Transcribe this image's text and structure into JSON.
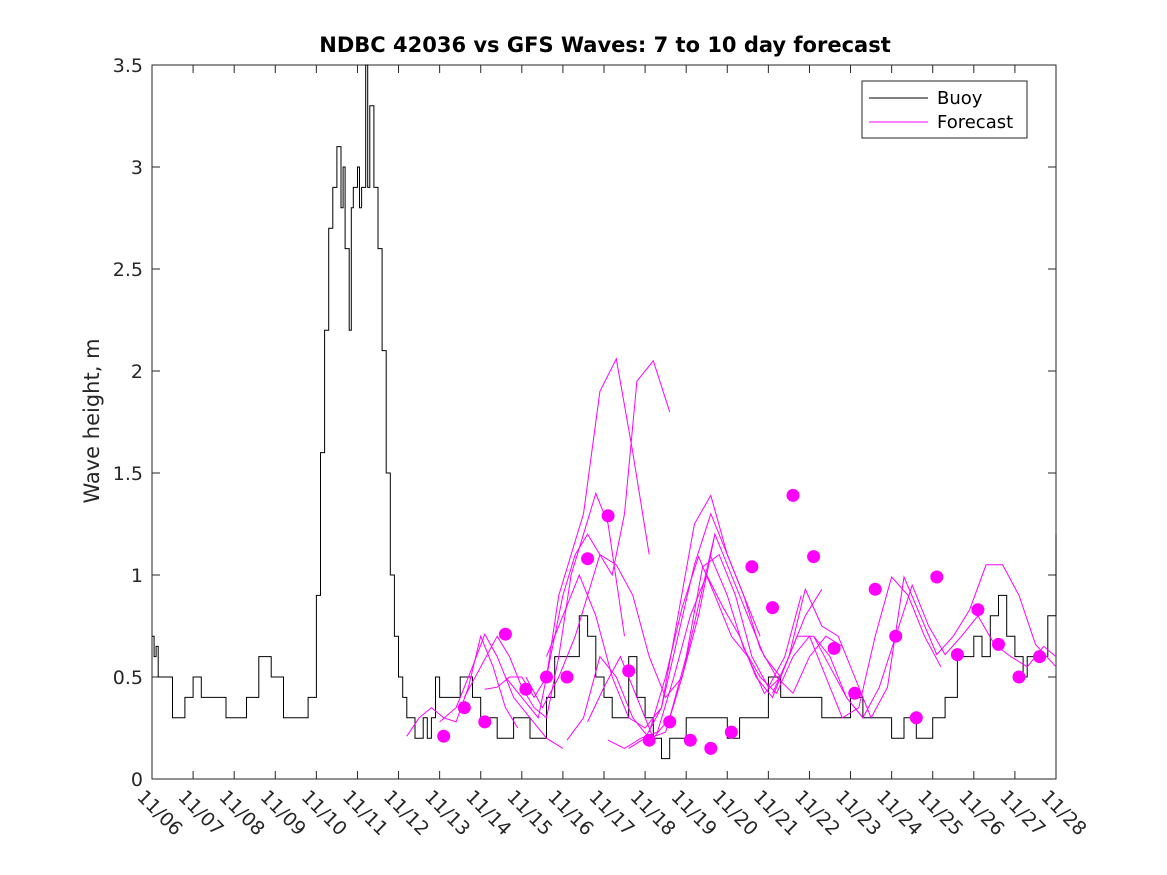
{
  "chart_data": {
    "type": "line",
    "title": "NDBC 42036 vs GFS Waves: 7 to 10 day forecast",
    "xlabel": "",
    "ylabel": "Wave height, m",
    "xlim": [
      0,
      22
    ],
    "ylim": [
      0,
      3.5
    ],
    "yticks": [
      0,
      0.5,
      1,
      1.5,
      2,
      2.5,
      3,
      3.5
    ],
    "ytick_labels": [
      "0",
      "0.5",
      "1",
      "1.5",
      "2",
      "2.5",
      "3",
      "3.5"
    ],
    "xticks": [
      0,
      1,
      2,
      3,
      4,
      5,
      6,
      7,
      8,
      9,
      10,
      11,
      12,
      13,
      14,
      15,
      16,
      17,
      18,
      19,
      20,
      21,
      22
    ],
    "xtick_labels": [
      "11/06",
      "11/07",
      "11/08",
      "11/09",
      "11/10",
      "11/11",
      "11/12",
      "11/13",
      "11/14",
      "11/15",
      "11/16",
      "11/17",
      "11/18",
      "11/19",
      "11/20",
      "11/21",
      "11/22",
      "11/23",
      "11/24",
      "11/25",
      "11/26",
      "11/27",
      "11/28"
    ],
    "legend": {
      "position": "top-right",
      "entries": [
        "Buoy",
        "Forecast"
      ]
    },
    "colors": {
      "buoy": "#000000",
      "forecast": "#ff00ff"
    },
    "buoy": {
      "name": "Buoy",
      "x": [
        0,
        0.05,
        0.1,
        0.15,
        0.3,
        0.5,
        0.7,
        0.8,
        0.9,
        1.0,
        1.2,
        1.4,
        1.6,
        1.8,
        2.0,
        2.3,
        2.6,
        2.9,
        3.2,
        3.5,
        3.8,
        4.0,
        4.1,
        4.2,
        4.3,
        4.4,
        4.5,
        4.6,
        4.65,
        4.7,
        4.8,
        4.85,
        4.9,
        5.0,
        5.05,
        5.1,
        5.2,
        5.25,
        5.3,
        5.4,
        5.5,
        5.6,
        5.7,
        5.8,
        5.9,
        6.0,
        6.1,
        6.2,
        6.3,
        6.4,
        6.5,
        6.6,
        6.7,
        6.8,
        6.9,
        7.0,
        7.2,
        7.5,
        7.8,
        8.0,
        8.2,
        8.4,
        8.6,
        8.8,
        9.0,
        9.2,
        9.4,
        9.6,
        9.8,
        10.0,
        10.2,
        10.4,
        10.6,
        10.8,
        11.0,
        11.2,
        11.4,
        11.6,
        11.8,
        12.0,
        12.2,
        12.4,
        12.6,
        12.8,
        13.0,
        13.2,
        13.4,
        13.6,
        13.8,
        14.0,
        14.3,
        14.6,
        15.0,
        15.3,
        15.6,
        16.0,
        16.3,
        16.6,
        17.0,
        17.3,
        17.6,
        18.0,
        18.3,
        18.6,
        19.0,
        19.3,
        19.6,
        20.0,
        20.2,
        20.4,
        20.6,
        20.8,
        21.0,
        21.2,
        21.3,
        21.5,
        21.8,
        22.0
      ],
      "values": [
        0.7,
        0.6,
        0.65,
        0.5,
        0.5,
        0.3,
        0.3,
        0.4,
        0.4,
        0.5,
        0.4,
        0.4,
        0.4,
        0.3,
        0.3,
        0.4,
        0.6,
        0.5,
        0.3,
        0.3,
        0.4,
        0.9,
        1.6,
        2.2,
        2.7,
        2.9,
        3.1,
        2.8,
        3.0,
        2.6,
        2.2,
        2.8,
        2.9,
        3.0,
        2.8,
        2.9,
        3.5,
        2.9,
        3.3,
        2.9,
        2.6,
        2.1,
        1.5,
        1.0,
        0.7,
        0.5,
        0.4,
        0.3,
        0.3,
        0.2,
        0.2,
        0.3,
        0.2,
        0.3,
        0.5,
        0.4,
        0.4,
        0.5,
        0.4,
        0.3,
        0.3,
        0.2,
        0.2,
        0.3,
        0.3,
        0.2,
        0.2,
        0.4,
        0.6,
        0.6,
        0.6,
        0.8,
        0.7,
        0.5,
        0.4,
        0.3,
        0.3,
        0.6,
        0.4,
        0.3,
        0.2,
        0.1,
        0.2,
        0.2,
        0.3,
        0.3,
        0.3,
        0.3,
        0.3,
        0.2,
        0.3,
        0.3,
        0.5,
        0.4,
        0.4,
        0.4,
        0.3,
        0.3,
        0.4,
        0.3,
        0.3,
        0.2,
        0.3,
        0.2,
        0.3,
        0.4,
        0.6,
        0.7,
        0.6,
        0.8,
        0.9,
        0.7,
        0.6,
        0.5,
        0.6,
        0.6,
        0.8,
        1.2
      ]
    },
    "series": [
      {
        "name": "Forecast",
        "x": [
          6.2,
          6.5,
          6.8,
          7.1,
          7.4,
          7.7,
          8.0,
          8.3,
          8.6,
          8.9
        ],
        "values": [
          0.21,
          0.3,
          0.35,
          0.3,
          0.28,
          0.45,
          0.7,
          0.55,
          0.35,
          0.25
        ]
      },
      {
        "name": "Forecast",
        "x": [
          7.0,
          7.4,
          7.8,
          8.1,
          8.4,
          8.8,
          9.2,
          9.6,
          10.0
        ],
        "values": [
          0.28,
          0.35,
          0.55,
          0.71,
          0.6,
          0.4,
          0.3,
          0.2,
          0.15
        ]
      },
      {
        "name": "Forecast",
        "x": [
          7.6,
          8.0,
          8.4,
          8.7,
          9.0,
          9.3,
          9.6,
          9.9,
          10.2,
          10.5,
          10.8,
          11.1,
          11.5
        ],
        "values": [
          0.4,
          0.55,
          0.7,
          0.6,
          0.45,
          0.35,
          0.3,
          0.6,
          1.0,
          1.2,
          1.4,
          1.25,
          0.7
        ]
      },
      {
        "name": "Forecast",
        "x": [
          8.1,
          8.4,
          8.7,
          9.0,
          9.3,
          9.6,
          9.9,
          10.2,
          10.5,
          10.9,
          11.3,
          11.7,
          12.1
        ],
        "values": [
          0.44,
          0.45,
          0.5,
          0.5,
          0.4,
          0.5,
          0.9,
          1.1,
          1.3,
          1.9,
          2.06,
          1.6,
          1.1
        ]
      },
      {
        "name": "Forecast",
        "x": [
          8.6,
          9.0,
          9.4,
          9.7,
          10.0,
          10.3,
          10.6,
          10.9,
          11.2,
          11.5,
          11.8,
          12.2,
          12.6
        ],
        "values": [
          0.5,
          0.4,
          0.3,
          0.6,
          0.9,
          1.1,
          1.2,
          1.1,
          1.0,
          1.3,
          1.95,
          2.05,
          1.8
        ]
      },
      {
        "name": "Forecast",
        "x": [
          9.1,
          9.5,
          9.9,
          10.3,
          10.6,
          10.9,
          11.3,
          11.7,
          12.1,
          12.5,
          12.9,
          13.3,
          13.7
        ],
        "values": [
          0.5,
          0.35,
          0.5,
          0.7,
          0.9,
          1.1,
          1.05,
          0.9,
          0.6,
          0.4,
          0.5,
          0.8,
          1.2
        ]
      },
      {
        "name": "Forecast",
        "x": [
          9.6,
          10.0,
          10.4,
          10.8,
          11.2,
          11.6,
          12.0,
          12.4,
          12.8,
          13.2,
          13.6,
          14.0,
          14.4,
          14.8
        ],
        "values": [
          0.6,
          0.8,
          1.0,
          0.8,
          0.5,
          0.3,
          0.25,
          0.35,
          0.7,
          1.05,
          1.3,
          1.1,
          0.9,
          0.7
        ]
      },
      {
        "name": "Forecast",
        "x": [
          10.1,
          10.5,
          10.9,
          11.3,
          11.7,
          12.1,
          12.5,
          12.9,
          13.3,
          13.7,
          14.1,
          14.5,
          14.9,
          15.3
        ],
        "values": [
          0.19,
          0.3,
          0.6,
          0.5,
          0.3,
          0.2,
          0.23,
          0.5,
          0.85,
          1.2,
          1.0,
          0.8,
          0.6,
          0.5
        ]
      },
      {
        "name": "Forecast",
        "x": [
          10.6,
          11.0,
          11.4,
          11.8,
          12.2,
          12.6,
          13.0,
          13.4,
          13.8,
          14.2,
          14.6,
          15.0,
          15.4,
          15.8
        ],
        "values": [
          0.28,
          0.45,
          0.6,
          0.4,
          0.2,
          0.3,
          0.6,
          1.04,
          1.1,
          0.9,
          0.6,
          0.45,
          0.6,
          0.9
        ]
      },
      {
        "name": "Forecast",
        "x": [
          11.1,
          11.5,
          11.9,
          12.3,
          12.7,
          13.1,
          13.5,
          13.9,
          14.3,
          14.7,
          15.1,
          15.5,
          15.9,
          16.3
        ],
        "values": [
          0.19,
          0.15,
          0.2,
          0.23,
          0.5,
          0.8,
          1.0,
          0.84,
          0.7,
          0.5,
          0.4,
          0.6,
          0.8,
          0.93
        ]
      },
      {
        "name": "Forecast",
        "x": [
          11.6,
          12.0,
          12.4,
          12.8,
          13.2,
          13.6,
          14.0,
          14.4,
          14.8,
          15.2,
          15.6,
          16.0,
          16.4,
          16.8
        ],
        "values": [
          0.15,
          0.2,
          0.35,
          0.8,
          1.25,
          1.39,
          1.1,
          0.9,
          0.64,
          0.5,
          0.42,
          0.6,
          0.7,
          0.65
        ]
      },
      {
        "name": "Forecast",
        "x": [
          12.1,
          12.5,
          12.9,
          13.3,
          13.7,
          14.1,
          14.5,
          14.9,
          15.3,
          15.7,
          16.1,
          16.5,
          16.9,
          17.3
        ],
        "values": [
          0.23,
          0.5,
          0.84,
          1.09,
          0.9,
          0.7,
          0.6,
          0.42,
          0.5,
          0.7,
          0.7,
          0.55,
          0.4,
          0.3
        ]
      },
      {
        "name": "Forecast",
        "x": [
          13.6,
          14.0,
          14.4,
          14.8,
          15.2,
          15.6,
          16.0,
          16.4,
          16.8,
          17.2,
          17.6,
          18.0,
          18.4,
          18.8,
          19.2
        ],
        "values": [
          1.09,
          0.9,
          0.64,
          0.5,
          0.42,
          0.6,
          0.7,
          0.5,
          0.3,
          0.35,
          0.7,
          0.99,
          0.9,
          0.7,
          0.55
        ]
      },
      {
        "name": "Forecast",
        "x": [
          15.1,
          15.5,
          15.9,
          16.3,
          16.7,
          17.1,
          17.5,
          17.9,
          18.3,
          18.7,
          19.1,
          19.5,
          19.9,
          20.3,
          20.7,
          21.1,
          21.5,
          22.0
        ],
        "values": [
          0.42,
          0.6,
          0.93,
          0.75,
          0.7,
          0.5,
          0.3,
          0.45,
          0.99,
          0.8,
          0.61,
          0.7,
          0.83,
          1.05,
          1.05,
          0.9,
          0.66,
          0.55
        ]
      },
      {
        "name": "Forecast",
        "x": [
          16.1,
          16.5,
          16.9,
          17.3,
          17.7,
          18.1,
          18.5,
          18.9,
          19.3,
          19.7,
          20.1,
          20.5,
          20.9,
          21.3,
          21.7,
          22.0
        ],
        "values": [
          0.7,
          0.6,
          0.4,
          0.3,
          0.45,
          0.7,
          0.95,
          0.75,
          0.61,
          0.7,
          0.8,
          0.66,
          0.6,
          0.55,
          0.65,
          0.6
        ]
      }
    ],
    "markers": {
      "x": [
        7.1,
        7.6,
        8.1,
        8.6,
        9.1,
        9.6,
        10.1,
        10.6,
        11.1,
        11.6,
        12.1,
        12.6,
        13.1,
        13.6,
        14.1,
        14.6,
        15.1,
        15.6,
        16.1,
        16.6,
        17.1,
        17.6,
        18.1,
        18.6,
        19.1,
        19.6,
        20.1,
        20.6,
        21.1,
        21.6
      ],
      "values": [
        0.21,
        0.35,
        0.28,
        0.71,
        0.44,
        0.5,
        0.5,
        1.08,
        1.29,
        0.53,
        0.19,
        0.28,
        0.19,
        0.15,
        0.23,
        1.04,
        0.84,
        1.39,
        1.09,
        0.64,
        0.42,
        0.93,
        0.7,
        0.3,
        0.99,
        0.61,
        0.83,
        0.66,
        0.5,
        0.6
      ]
    }
  }
}
